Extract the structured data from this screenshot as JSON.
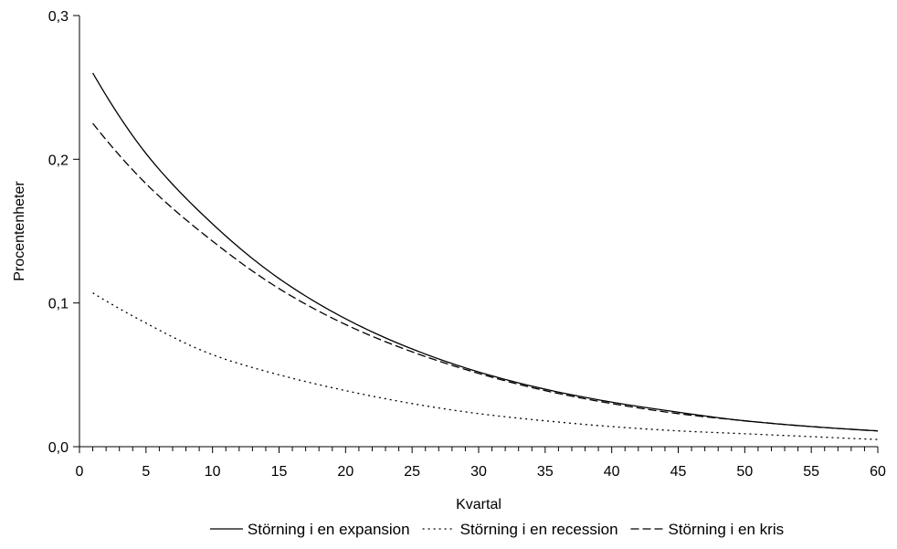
{
  "chart_data": {
    "type": "line",
    "title": "",
    "xlabel": "Kvartal",
    "ylabel": "Procentenheter",
    "xlim": [
      0,
      60
    ],
    "ylim": [
      0,
      0.3
    ],
    "x_ticks": [
      0,
      5,
      10,
      15,
      20,
      25,
      30,
      35,
      40,
      45,
      50,
      55,
      60
    ],
    "x_tick_labels": [
      "0",
      "5",
      "10",
      "15",
      "20",
      "25",
      "30",
      "35",
      "40",
      "45",
      "50",
      "55",
      "60"
    ],
    "y_ticks": [
      0,
      0.1,
      0.2,
      0.3
    ],
    "y_tick_labels": [
      "0,0",
      "0,1",
      "0,2",
      "0,3"
    ],
    "x_minor_tick_step": 1,
    "grid": false,
    "legend_position": "bottom",
    "x": [
      1,
      5,
      10,
      15,
      20,
      25,
      30,
      35,
      40,
      45,
      50,
      55,
      60
    ],
    "series": [
      {
        "name": "Störning i en expansion",
        "style": "solid",
        "color": "#000000",
        "values": [
          0.26,
          0.204,
          0.155,
          0.117,
          0.089,
          0.068,
          0.052,
          0.04,
          0.031,
          0.024,
          0.018,
          0.014,
          0.011
        ]
      },
      {
        "name": "Störning i en recession",
        "style": "dotted",
        "color": "#000000",
        "values": [
          0.107,
          0.086,
          0.064,
          0.05,
          0.039,
          0.03,
          0.023,
          0.018,
          0.014,
          0.011,
          0.009,
          0.007,
          0.005
        ]
      },
      {
        "name": "Störning i en kris",
        "style": "dashed",
        "color": "#000000",
        "values": [
          0.225,
          0.183,
          0.143,
          0.11,
          0.085,
          0.066,
          0.051,
          0.039,
          0.03,
          0.023,
          0.018,
          0.014,
          0.011
        ]
      }
    ]
  }
}
